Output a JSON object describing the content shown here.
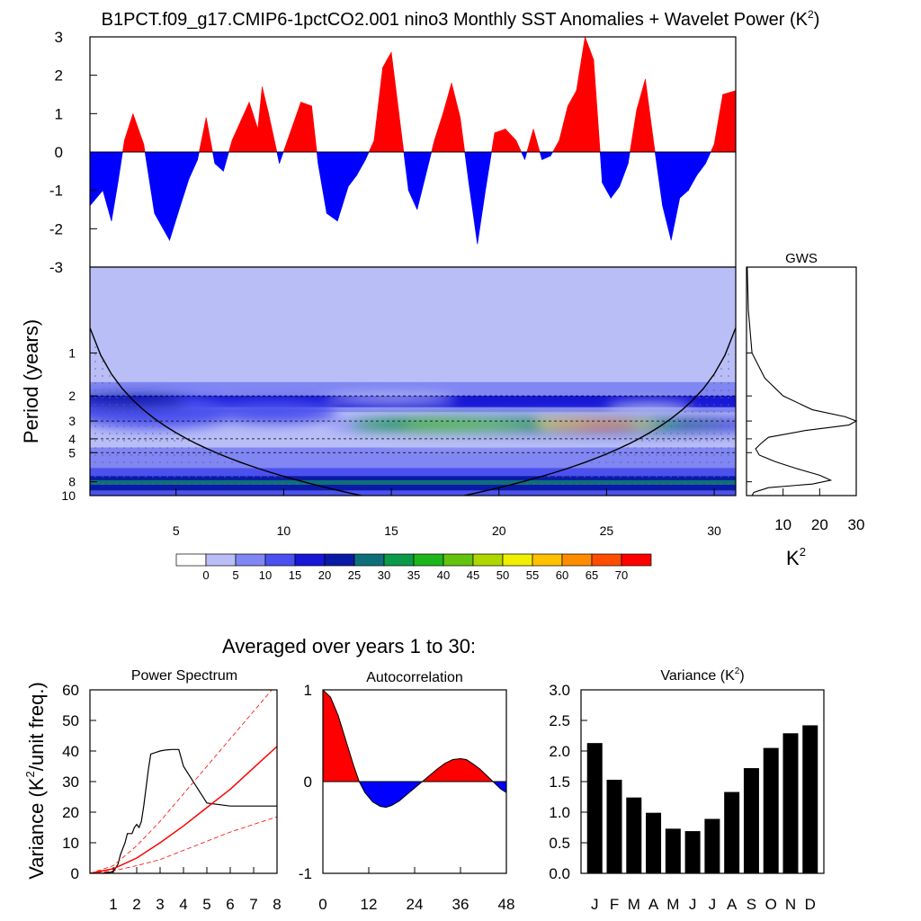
{
  "title": "B1PCT.f09_g17.CMIP6-1pctCO2.001 nino3 Monthly SST Anomalies + Wavelet Power (K",
  "title_sup": "2",
  "title_close": ")",
  "colors": {
    "positive": "#ff0000",
    "negative": "#0000ff",
    "bar": "#000000"
  },
  "chart_data": [
    {
      "id": "timeseries",
      "type": "area",
      "ylim": [
        -3,
        3
      ],
      "yticks": [
        "3",
        "2",
        "1",
        "0",
        "-1",
        "-2",
        "-3"
      ],
      "xlim": [
        1,
        31
      ],
      "x": [
        1.0,
        1.6,
        2.0,
        2.3,
        2.6,
        3.0,
        3.5,
        4.0,
        4.7,
        5.2,
        5.6,
        6.0,
        6.4,
        6.8,
        7.2,
        7.6,
        8.0,
        8.4,
        8.8,
        9.0,
        9.3,
        9.8,
        10.3,
        10.8,
        11.3,
        11.6,
        12.0,
        12.5,
        13.0,
        13.4,
        13.8,
        14.2,
        14.6,
        15.0,
        15.4,
        15.8,
        16.2,
        16.6,
        17.0,
        17.4,
        17.8,
        18.2,
        18.6,
        19.0,
        19.4,
        19.8,
        20.3,
        20.8,
        21.2,
        21.6,
        22.0,
        22.4,
        22.8,
        23.2,
        23.6,
        24.0,
        24.4,
        24.8,
        25.2,
        25.6,
        26.0,
        26.4,
        26.8,
        27.2,
        27.6,
        28.0,
        28.4,
        28.8,
        29.2,
        29.6,
        30.0,
        30.4,
        31.0
      ],
      "y": [
        -1.4,
        -1.0,
        -1.8,
        -0.8,
        0.3,
        1.0,
        0.2,
        -1.6,
        -2.3,
        -1.4,
        -0.7,
        -0.2,
        0.9,
        -0.3,
        -0.5,
        0.3,
        0.8,
        1.3,
        0.6,
        1.7,
        1.0,
        -0.3,
        0.5,
        1.3,
        1.2,
        -0.3,
        -1.6,
        -1.8,
        -0.9,
        -0.6,
        -0.2,
        0.3,
        2.2,
        2.6,
        0.8,
        -1.0,
        -1.5,
        -0.6,
        0.3,
        1.0,
        1.8,
        0.9,
        -0.8,
        -2.4,
        -0.9,
        0.5,
        0.6,
        0.3,
        -0.2,
        0.6,
        -0.2,
        -0.1,
        0.3,
        1.2,
        1.6,
        3.0,
        2.4,
        -0.8,
        -1.2,
        -0.9,
        -0.3,
        1.1,
        1.9,
        0.2,
        -1.4,
        -2.3,
        -1.2,
        -1.0,
        -0.6,
        -0.3,
        0.2,
        1.5,
        1.6
      ]
    },
    {
      "id": "wavelet",
      "type": "heatmap",
      "xlim": [
        1,
        31
      ],
      "xticks": [
        "5",
        "10",
        "15",
        "20",
        "25",
        "30"
      ],
      "yscale": "log",
      "ylabel": "Period (years)",
      "ylim": [
        0.25,
        10
      ],
      "yticks": [
        "1",
        "2",
        "3",
        "4",
        "5",
        "8",
        "10"
      ],
      "dashed_periods": [
        2,
        3,
        4,
        5
      ],
      "power_peaks": [
        {
          "time": 24.0,
          "period": 3.2,
          "value": 72
        },
        {
          "time": 18.0,
          "period": 3.2,
          "value": 44
        },
        {
          "time": 22.5,
          "period": 3.1,
          "value": 55
        },
        {
          "time": 7.5,
          "period": 2.8,
          "value": 14
        },
        {
          "time": 3.0,
          "period": 2.5,
          "value": 18
        },
        {
          "time": 20.0,
          "period": 8.0,
          "value": 19
        },
        {
          "time": 10.0,
          "period": 8.0,
          "value": 18
        }
      ]
    },
    {
      "id": "gws",
      "type": "line",
      "title": "GWS",
      "xlabel": "K",
      "xlabel_sup": "2",
      "xlim": [
        0,
        30
      ],
      "xticks": [
        "10",
        "20",
        "30"
      ],
      "period": [
        0.25,
        0.5,
        1.0,
        1.5,
        2.0,
        2.5,
        2.8,
        3.0,
        3.2,
        3.5,
        3.9,
        4.3,
        4.7,
        5.2,
        5.8,
        6.5,
        7.2,
        7.8,
        8.3,
        8.8,
        9.5,
        10.0
      ],
      "power": [
        0.2,
        0.5,
        1.5,
        5.0,
        10.0,
        18.0,
        27.0,
        30.0,
        28.0,
        16.0,
        6.0,
        4.0,
        2.5,
        3.5,
        8.0,
        14.0,
        20.0,
        23.0,
        18.0,
        6.0,
        2.0,
        1.5
      ]
    },
    {
      "id": "colorbar",
      "type": "legend",
      "labels": [
        "0",
        "5",
        "10",
        "15",
        "20",
        "25",
        "30",
        "35",
        "40",
        "45",
        "50",
        "55",
        "60",
        "65",
        "70"
      ],
      "colors": [
        "#ffffff",
        "#b9bef7",
        "#8086f2",
        "#4b51ee",
        "#1717d6",
        "#0a1aa6",
        "#0e6f7a",
        "#0a9a4a",
        "#1cb61c",
        "#64c30e",
        "#b0d600",
        "#f0ef00",
        "#ffc000",
        "#ff8c00",
        "#ff4d00",
        "#ff0000"
      ]
    },
    {
      "id": "avg_title",
      "type": "table",
      "title": "Averaged over years 1 to 30:"
    },
    {
      "id": "power_spectrum",
      "type": "line",
      "title": "Power Spectrum",
      "ylabel": "Variance (K",
      "ylabel_sup": "2",
      "ylabel_end": "/unit freq.)",
      "xlim": [
        0,
        8
      ],
      "ylim": [
        0,
        60
      ],
      "xticks": [
        "1",
        "2",
        "3",
        "4",
        "5",
        "6",
        "7",
        "8"
      ],
      "yticks": [
        "0",
        "10",
        "20",
        "30",
        "40",
        "50",
        "60"
      ],
      "series": [
        {
          "x": [
            0,
            0.5,
            1.0,
            1.2,
            1.3,
            1.5,
            1.6,
            1.8,
            1.9,
            2.0,
            2.1,
            2.2,
            2.3,
            2.4,
            2.5,
            2.6,
            2.8,
            3.0,
            3.2,
            3.5,
            3.8,
            4.0,
            4.5,
            5.0,
            6.0,
            7.0,
            8.0
          ],
          "y": [
            0,
            0,
            0.5,
            3,
            6,
            10,
            13,
            13,
            15,
            16,
            15,
            17,
            22,
            28,
            34,
            39,
            39.5,
            40,
            40.3,
            40.5,
            40.5,
            35,
            29,
            23,
            22,
            22,
            22
          ]
        },
        {
          "x": [
            0,
            1,
            2,
            3,
            4,
            5,
            6,
            7,
            8
          ],
          "y": [
            0,
            1.5,
            5,
            10,
            15.5,
            21.5,
            27.5,
            34.5,
            41.5
          ]
        },
        {
          "x": [
            0,
            1,
            2,
            3,
            4,
            5,
            6,
            7,
            8
          ],
          "y": [
            0,
            2.5,
            9,
            17,
            26,
            35,
            44,
            53,
            62
          ]
        },
        {
          "x": [
            0,
            1,
            2,
            3,
            4,
            5,
            6,
            7,
            8
          ],
          "y": [
            0,
            0.8,
            2.5,
            4.5,
            7.5,
            10.5,
            13.5,
            16,
            18.5
          ]
        }
      ]
    },
    {
      "id": "autocorrelation",
      "type": "area",
      "title": "Autocorrelation",
      "xlim": [
        0,
        48
      ],
      "ylim": [
        -1,
        1
      ],
      "xticks": [
        "0",
        "12",
        "24",
        "36",
        "48"
      ],
      "yticks": [
        "1",
        "0",
        "-1"
      ],
      "x": [
        0,
        2,
        4,
        6,
        8,
        9.5,
        11,
        13,
        15,
        16.5,
        18,
        20,
        22,
        24,
        26,
        28,
        30,
        32,
        34,
        36,
        37.5,
        39,
        41,
        43,
        45,
        46.5,
        48
      ],
      "y": [
        1.0,
        0.92,
        0.72,
        0.45,
        0.18,
        0.0,
        -0.12,
        -0.22,
        -0.27,
        -0.28,
        -0.26,
        -0.21,
        -0.14,
        -0.07,
        0.0,
        0.07,
        0.14,
        0.2,
        0.24,
        0.25,
        0.24,
        0.2,
        0.14,
        0.06,
        -0.02,
        -0.08,
        -0.12
      ]
    },
    {
      "id": "variance",
      "type": "bar",
      "title": "Variance (K",
      "title_sup": "2",
      "title_close": ")",
      "categories": [
        "J",
        "F",
        "M",
        "A",
        "M",
        "J",
        "J",
        "A",
        "S",
        "O",
        "N",
        "D"
      ],
      "values": [
        2.13,
        1.53,
        1.24,
        0.99,
        0.73,
        0.69,
        0.89,
        1.33,
        1.72,
        2.05,
        2.29,
        2.42
      ],
      "ylim": [
        0,
        3
      ],
      "yticks": [
        "3.0",
        "2.5",
        "2.0",
        "1.5",
        "1.0",
        "0.5",
        "0.0"
      ]
    }
  ]
}
